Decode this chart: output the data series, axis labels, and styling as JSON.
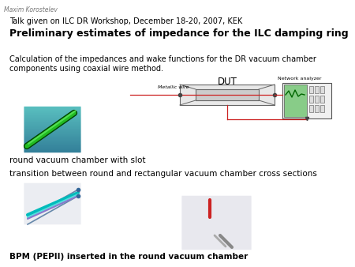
{
  "author": "Maxim Korostelev",
  "subtitle": "Talk given on ILC DR Workshop, December 18-20, 2007, KEK",
  "title": "Preliminary estimates of impedance for the ILC damping ring",
  "body1": "Calculation of the impedances and wake functions for the DR vacuum chamber",
  "body2": "components using coaxial wire method.",
  "label1": "round vacuum chamber with slot",
  "label2": "transition between round and rectangular vacuum chamber cross sections",
  "label3": "BPM (PEPII) inserted in the round vacuum chamber",
  "dut_label": "DUT",
  "metallic_wire_label": "Metallic wire",
  "network_analyzer_label": "Network analyzer",
  "bg_color": "#ffffff",
  "text_color": "#000000",
  "gray_text": "#888888"
}
